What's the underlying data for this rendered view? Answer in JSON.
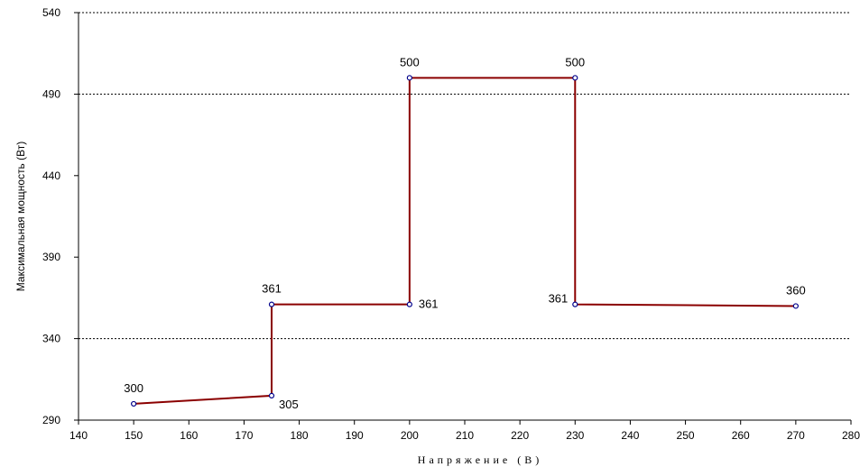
{
  "chart_data": {
    "type": "line",
    "title": "",
    "xlabel": "Напряжение (В)",
    "ylabel": "Максимальная мощность (Вт)",
    "xlim": [
      140,
      280
    ],
    "ylim": [
      290,
      540
    ],
    "x_ticks": [
      140,
      150,
      160,
      170,
      180,
      190,
      200,
      210,
      220,
      230,
      240,
      250,
      260,
      270,
      280
    ],
    "y_ticks": [
      290,
      340,
      390,
      440,
      490,
      540
    ],
    "y_gridlines": [
      340,
      490,
      540
    ],
    "grid": "dashed horizontal",
    "series": [
      {
        "color": "#8b0000",
        "marker_color": "#00008b",
        "points": [
          {
            "x": 150,
            "y": 300,
            "label": "300",
            "label_pos": "above"
          },
          {
            "x": 175,
            "y": 305,
            "label": "305",
            "label_pos": "below-right"
          },
          {
            "x": 175,
            "y": 361,
            "label": "361",
            "label_pos": "above"
          },
          {
            "x": 200,
            "y": 361,
            "label": "361",
            "label_pos": "right"
          },
          {
            "x": 200,
            "y": 500,
            "label": "500",
            "label_pos": "above"
          },
          {
            "x": 230,
            "y": 500,
            "label": "500",
            "label_pos": "above"
          },
          {
            "x": 230,
            "y": 361,
            "label": "361",
            "label_pos": "left"
          },
          {
            "x": 270,
            "y": 360,
            "label": "360",
            "label_pos": "above"
          }
        ]
      }
    ]
  }
}
